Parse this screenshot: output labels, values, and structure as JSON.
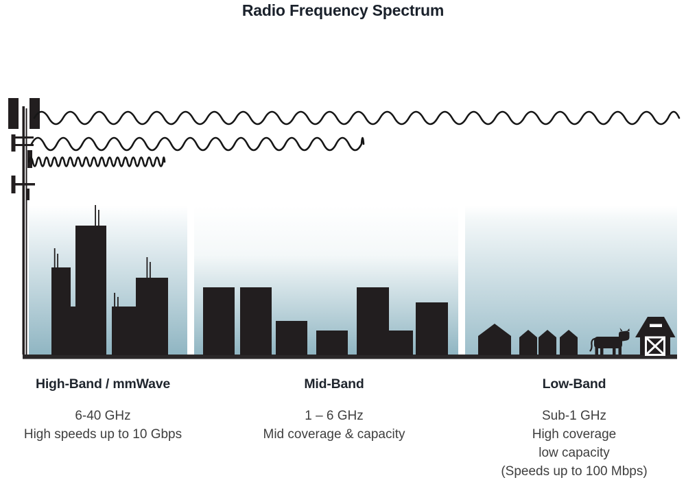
{
  "title": "Radio Frequency Spectrum",
  "bands": [
    {
      "name": "High-Band / mmWave",
      "details": [
        "6-40 GHz",
        "High speeds up to 10 Gbps"
      ]
    },
    {
      "name": "Mid-Band",
      "details": [
        "1 – 6 GHz",
        "Mid coverage & capacity"
      ]
    },
    {
      "name": "Low-Band",
      "details": [
        "Sub-1 GHz",
        "High coverage",
        "low capacity",
        "(Speeds up to 100 Mbps)"
      ]
    }
  ],
  "icons": {
    "transmitter": "cell-tower-icon",
    "waves": [
      "long-range-wave-icon",
      "medium-range-wave-icon",
      "short-range-wave-icon"
    ],
    "high_band_scene": "city-skyline-icon",
    "mid_band_scene": "town-skyline-icon",
    "low_band_scene": [
      "houses-icon",
      "cow-icon",
      "barn-icon"
    ]
  },
  "colors": {
    "silhouette": "#221e1f",
    "sky_gradient_top": "#ffffff",
    "sky_gradient_bottom": "#8fb5c2",
    "ground": "#2b2829",
    "heading_text": "#1a212b",
    "body_text": "#3e3e3e"
  }
}
